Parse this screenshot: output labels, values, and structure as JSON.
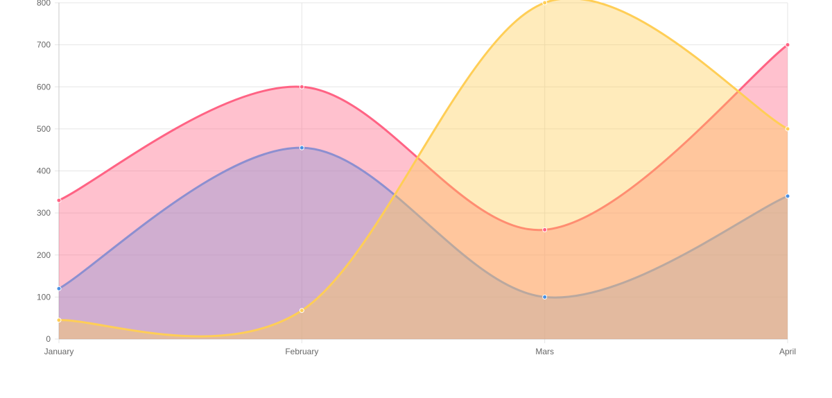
{
  "chart_data": {
    "type": "area",
    "categories": [
      "January",
      "February",
      "Mars",
      "April"
    ],
    "ylim": [
      0,
      800
    ],
    "yticks": [
      0,
      100,
      200,
      300,
      400,
      500,
      600,
      700,
      800
    ],
    "grid": true,
    "series": [
      {
        "values": [
          330,
          600,
          260,
          700
        ],
        "line_color": "#ff6384",
        "fill_color": "rgba(255,99,132,0.40)"
      },
      {
        "values": [
          120,
          455,
          100,
          340
        ],
        "line_color": "#8c8fd0",
        "point_color": "#4a90e2",
        "fill_color": "rgba(150,150,210,0.45)"
      },
      {
        "values": [
          45,
          68,
          800,
          500
        ],
        "line_color": "#ffce56",
        "fill_color": "rgba(255,206,86,0.40)"
      }
    ],
    "colors": {
      "axis": "#666666",
      "grid": "#e5e5e5",
      "tick_text": "#666666"
    }
  }
}
